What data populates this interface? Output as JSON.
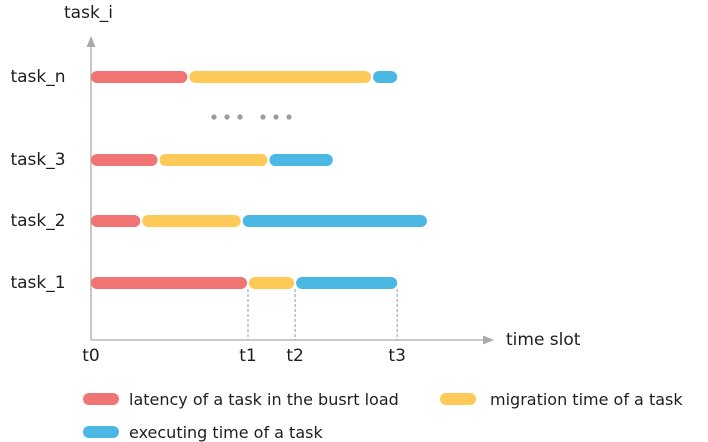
{
  "diagram": {
    "y_axis_label": "task_i",
    "x_axis_label": "time slot",
    "ellipsis": "••• •••",
    "colors": {
      "latency": "#f07474",
      "migration": "#fdc957",
      "executing": "#4bb7e3"
    },
    "time_ticks": [
      {
        "label": "t0",
        "value": 0
      },
      {
        "label": "t1",
        "value": 1
      },
      {
        "label": "t2",
        "value": 1.3
      },
      {
        "label": "t3",
        "value": 1.95
      }
    ],
    "tasks": [
      {
        "label": "task_n",
        "segments": [
          {
            "kind": "latency",
            "start": 0,
            "end": 0.62
          },
          {
            "kind": "migration",
            "start": 0.62,
            "end": 1.79
          },
          {
            "kind": "executing",
            "start": 1.79,
            "end": 1.95
          }
        ]
      },
      {
        "label": "task_3",
        "segments": [
          {
            "kind": "latency",
            "start": 0,
            "end": 0.43
          },
          {
            "kind": "migration",
            "start": 0.43,
            "end": 1.13
          },
          {
            "kind": "executing",
            "start": 1.13,
            "end": 1.54
          }
        ]
      },
      {
        "label": "task_2",
        "segments": [
          {
            "kind": "latency",
            "start": 0,
            "end": 0.32
          },
          {
            "kind": "migration",
            "start": 0.32,
            "end": 0.96
          },
          {
            "kind": "executing",
            "start": 0.96,
            "end": 2.14
          }
        ]
      },
      {
        "label": "task_1",
        "segments": [
          {
            "kind": "latency",
            "start": 0,
            "end": 1.0
          },
          {
            "kind": "migration",
            "start": 1.0,
            "end": 1.3
          },
          {
            "kind": "executing",
            "start": 1.3,
            "end": 1.95
          }
        ]
      }
    ],
    "legend": [
      {
        "kind": "latency",
        "label": "latency of a task in the busrt load"
      },
      {
        "kind": "migration",
        "label": "migration time of a task"
      },
      {
        "kind": "executing",
        "label": "executing time of a task"
      }
    ]
  }
}
